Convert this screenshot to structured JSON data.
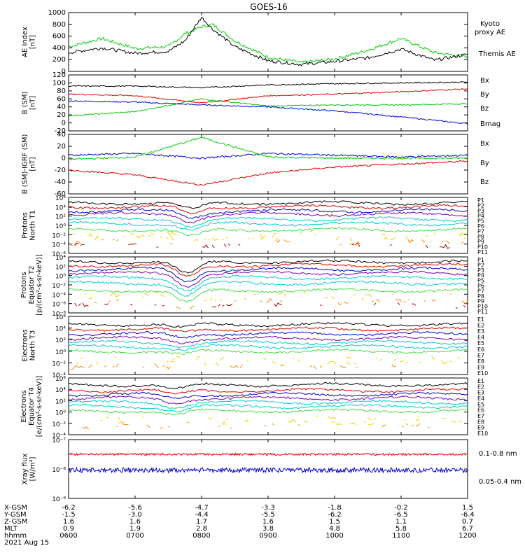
{
  "title": "GOES-16",
  "colors": {
    "black": "#000000",
    "blue": "#0000cc",
    "green": "#00cc00",
    "red": "#dd0000",
    "purple": "#7700aa",
    "cyan": "#00cccc",
    "lightgreen": "#44dd44",
    "yellow": "#e8d800",
    "orange": "#ff8800",
    "darkred": "#aa0000"
  },
  "chart_data": [
    {
      "type": "line",
      "id": "ae",
      "ylabel": "AE Index\n[nT]",
      "yticks": [
        "0",
        "200",
        "400",
        "600",
        "800",
        "1000"
      ],
      "ylim": [
        0,
        1000
      ],
      "x": [
        "0600",
        "0630",
        "0700",
        "0730",
        "0745",
        "0800",
        "0810",
        "0830",
        "0900",
        "0930",
        "1000",
        "1030",
        "1100",
        "1130",
        "1200"
      ],
      "series": [
        {
          "name": "Kyoto proxy AE",
          "color": "green",
          "values": [
            420,
            560,
            390,
            420,
            640,
            760,
            800,
            520,
            240,
            150,
            210,
            360,
            560,
            320,
            250
          ]
        },
        {
          "name": "Themis AE",
          "color": "black",
          "values": [
            320,
            400,
            310,
            340,
            520,
            920,
            720,
            420,
            180,
            120,
            170,
            230,
            380,
            190,
            290
          ]
        }
      ]
    },
    {
      "type": "line",
      "id": "bsm",
      "ylabel": "B (SM)\n[nT]",
      "yticks": [
        "-20",
        "0",
        "20",
        "40",
        "60",
        "80",
        "100",
        "120"
      ],
      "ylim": [
        -20,
        120
      ],
      "x": [
        "0600",
        "0700",
        "0800",
        "0900",
        "1000",
        "1100",
        "1200"
      ],
      "series": [
        {
          "name": "Bx",
          "color": "blue",
          "values": [
            55,
            52,
            45,
            40,
            30,
            15,
            -2
          ]
        },
        {
          "name": "By",
          "color": "green",
          "values": [
            18,
            28,
            60,
            42,
            45,
            45,
            48
          ]
        },
        {
          "name": "Bz",
          "color": "red",
          "values": [
            72,
            68,
            50,
            68,
            72,
            78,
            85
          ]
        },
        {
          "name": "Bmag",
          "color": "black",
          "values": [
            92,
            92,
            88,
            95,
            98,
            100,
            102
          ]
        }
      ]
    },
    {
      "type": "line",
      "id": "bigrf",
      "ylabel": "B (SM)-IGRF (SM)\n[nT]",
      "yticks": [
        "-60",
        "-40",
        "-20",
        "0",
        "20",
        "40"
      ],
      "ylim": [
        -60,
        40
      ],
      "x": [
        "0600",
        "0700",
        "0800",
        "0900",
        "1000",
        "1100",
        "1200"
      ],
      "series": [
        {
          "name": "Bx",
          "color": "blue",
          "values": [
            5,
            8,
            0,
            8,
            5,
            2,
            5
          ]
        },
        {
          "name": "By",
          "color": "green",
          "values": [
            -2,
            2,
            35,
            2,
            0,
            0,
            0
          ]
        },
        {
          "name": "Bz",
          "color": "red",
          "values": [
            -20,
            -28,
            -45,
            -25,
            -15,
            -10,
            -5
          ]
        }
      ]
    },
    {
      "type": "line",
      "id": "prot1",
      "log": true,
      "ylabel": "Protons\nNorth T1",
      "yticks": [
        "10⁶",
        "10⁴",
        "10²",
        "10⁰",
        "10⁻²",
        "10⁻⁴",
        "10⁻⁶"
      ],
      "series_labels": [
        "P1",
        "P2",
        "P3",
        "P4",
        "P5",
        "P6",
        "P7",
        "P8",
        "P9",
        "P10",
        "P11"
      ]
    },
    {
      "type": "line",
      "id": "prot2",
      "log": true,
      "ylabel": "Protons\nEquator T2\n[p/(cm²-s-sr-keV)]",
      "yticks": [
        "10⁴",
        "10²",
        "10⁰",
        "10⁻²",
        "10⁻⁴",
        "10⁻⁶",
        "10⁻⁸"
      ],
      "series_labels": [
        "P1",
        "P2",
        "P3",
        "P4",
        "P5",
        "P6",
        "P7",
        "P8",
        "P9",
        "P10",
        "P11"
      ]
    },
    {
      "type": "line",
      "id": "elec3",
      "log": true,
      "ylabel": "Electrons\nNorth T3",
      "yticks": [
        "10⁶",
        "10⁴",
        "10²",
        "10⁰",
        "10⁻²",
        "10⁻⁴"
      ],
      "series_labels": [
        "E1",
        "E2",
        "E3",
        "E4",
        "E5",
        "E6",
        "E7",
        "E8",
        "E9",
        "E10"
      ]
    },
    {
      "type": "line",
      "id": "elec4",
      "log": true,
      "ylabel": "Electrons\nEquator T4\n[e/(cm²-s-sr-keV)]",
      "yticks": [
        "10⁶",
        "10⁴",
        "10²",
        "10⁰",
        "10⁻²",
        "10⁻⁴"
      ],
      "series_labels": [
        "E1",
        "E2",
        "E3",
        "E4",
        "E5",
        "E6",
        "E7",
        "E8",
        "E9",
        "E10"
      ]
    },
    {
      "type": "line",
      "id": "xray",
      "log": true,
      "ylabel": "Xray flux\n[W/m²]",
      "yticks": [
        "10⁻⁷",
        "10⁻⁸",
        "10⁻⁹"
      ],
      "series": [
        {
          "name": "0.1-0.8 nm",
          "color": "red",
          "values": [
            3e-08,
            3e-08,
            3e-08,
            3e-08,
            3e-08,
            3e-08,
            3e-08
          ]
        },
        {
          "name": "0.05-0.4 nm",
          "color": "blue",
          "values": [
            1e-08,
            1e-08,
            1e-08,
            1e-08,
            1e-08,
            1e-08,
            1e-08
          ]
        }
      ]
    }
  ],
  "xaxis": {
    "rows": [
      {
        "label": "X-GSM",
        "values": [
          "-6.2",
          "-5.6",
          "-4.7",
          "-3.3",
          "-1.8",
          "-0.2",
          "1.5"
        ]
      },
      {
        "label": "Y-GSM",
        "values": [
          "-1.5",
          "-3.0",
          "-4.4",
          "-5.5",
          "-6.2",
          "-6.5",
          "-6.4"
        ]
      },
      {
        "label": "Z-GSM",
        "values": [
          "1.6",
          "1.6",
          "1.7",
          "1.6",
          "1.5",
          "1.1",
          "0.7"
        ]
      },
      {
        "label": "MLT",
        "values": [
          "0.9",
          "1.9",
          "2.8",
          "3.8",
          "4.8",
          "5.8",
          "6.7"
        ]
      },
      {
        "label": "hhmm",
        "values": [
          "0600",
          "0700",
          "0800",
          "0900",
          "1000",
          "1100",
          "1200"
        ]
      }
    ],
    "date": "2021 Aug 15"
  },
  "legends": {
    "ae": [
      "Kyoto\nproxy AE",
      "Themis AE"
    ],
    "bsm": [
      "Bx",
      "By",
      "Bz",
      "Bmag"
    ],
    "bigrf": [
      "Bx",
      "By",
      "Bz"
    ],
    "xray": [
      "0.1-0.8 nm",
      "0.05-0.4 nm"
    ]
  }
}
